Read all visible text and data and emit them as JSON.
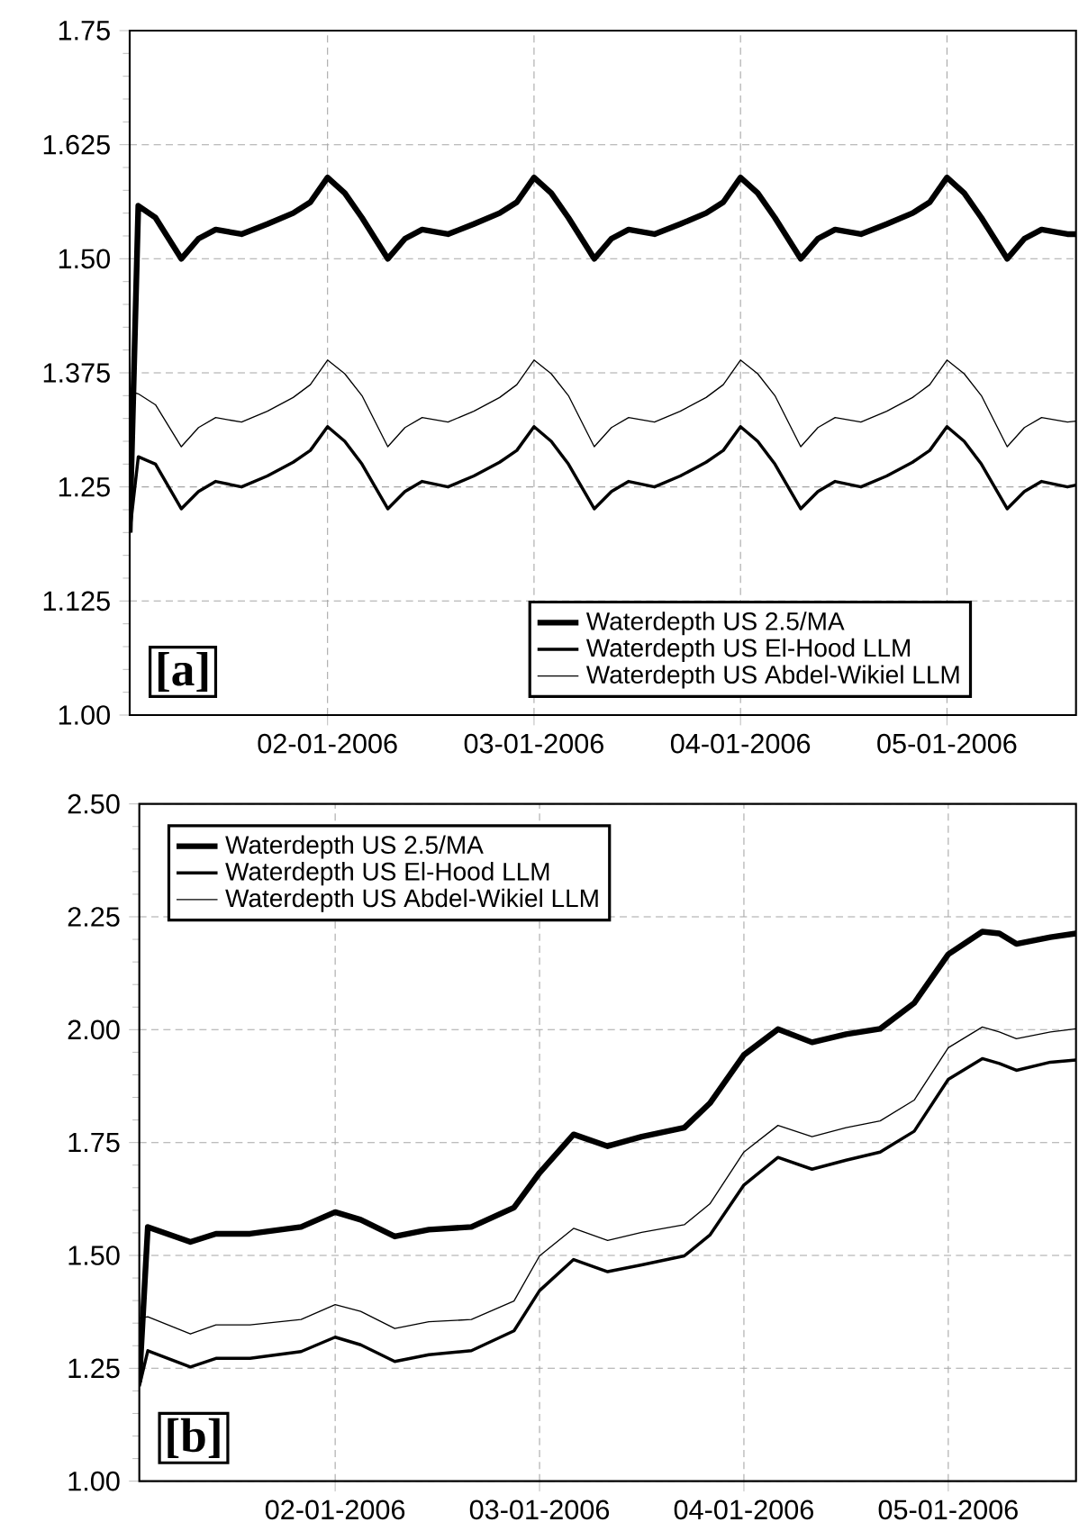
{
  "chart_data": [
    {
      "type": "line",
      "x": [
        "2006-01-01T01:00",
        "2006-01-01T02:00",
        "2006-01-01T04:00",
        "2006-01-01T07:00",
        "2006-01-01T09:00",
        "2006-01-01T11:00",
        "2006-01-01T14:00",
        "2006-01-01T17:00",
        "2006-01-01T20:00",
        "2006-01-01T22:00",
        "2006-01-02T00:00",
        "2006-01-02T02:00",
        "2006-01-02T04:00",
        "2006-01-02T07:00",
        "2006-01-02T09:00",
        "2006-01-02T11:00",
        "2006-01-02T14:00",
        "2006-01-02T17:00",
        "2006-01-02T20:00",
        "2006-01-02T22:00",
        "2006-01-03T00:00",
        "2006-01-03T02:00",
        "2006-01-03T04:00",
        "2006-01-03T07:00",
        "2006-01-03T09:00",
        "2006-01-03T11:00",
        "2006-01-03T14:00",
        "2006-01-03T17:00",
        "2006-01-03T20:00",
        "2006-01-03T22:00",
        "2006-01-04T00:00",
        "2006-01-04T02:00",
        "2006-01-04T04:00",
        "2006-01-04T07:00",
        "2006-01-04T09:00",
        "2006-01-04T11:00",
        "2006-01-04T14:00",
        "2006-01-04T17:00",
        "2006-01-04T20:00",
        "2006-01-04T22:00",
        "2006-01-05T00:00",
        "2006-01-05T02:00",
        "2006-01-05T04:00",
        "2006-01-05T07:00",
        "2006-01-05T09:00",
        "2006-01-05T11:00",
        "2006-01-05T14:00",
        "2006-01-05T15:00"
      ],
      "series": [
        {
          "name": "Waterdepth US 2.5/MA",
          "color": "#000000",
          "values": [
            1.2,
            1.558,
            1.545,
            1.5,
            1.522,
            1.532,
            1.527,
            1.538,
            1.55,
            1.562,
            1.589,
            1.572,
            1.545,
            1.5,
            1.522,
            1.532,
            1.527,
            1.538,
            1.55,
            1.562,
            1.589,
            1.572,
            1.545,
            1.5,
            1.522,
            1.532,
            1.527,
            1.538,
            1.55,
            1.562,
            1.589,
            1.572,
            1.545,
            1.5,
            1.522,
            1.532,
            1.527,
            1.538,
            1.55,
            1.562,
            1.589,
            1.572,
            1.545,
            1.5,
            1.522,
            1.532,
            1.527,
            1.527
          ]
        },
        {
          "name": "Waterdepth US El-Hood LLM",
          "color": "#000000",
          "values": [
            1.2,
            1.283,
            1.275,
            1.226,
            1.245,
            1.256,
            1.25,
            1.262,
            1.277,
            1.29,
            1.316,
            1.3,
            1.275,
            1.226,
            1.245,
            1.256,
            1.25,
            1.262,
            1.277,
            1.29,
            1.316,
            1.3,
            1.275,
            1.226,
            1.245,
            1.256,
            1.25,
            1.262,
            1.277,
            1.29,
            1.316,
            1.3,
            1.275,
            1.226,
            1.245,
            1.256,
            1.25,
            1.262,
            1.277,
            1.29,
            1.316,
            1.3,
            1.275,
            1.226,
            1.245,
            1.256,
            1.25,
            1.252
          ]
        },
        {
          "name": "Waterdepth US Abdel-Wikiel LLM",
          "color": "#000000",
          "values": [
            1.355,
            1.352,
            1.34,
            1.294,
            1.315,
            1.326,
            1.321,
            1.333,
            1.348,
            1.362,
            1.389,
            1.374,
            1.35,
            1.294,
            1.315,
            1.326,
            1.321,
            1.333,
            1.348,
            1.362,
            1.389,
            1.374,
            1.35,
            1.294,
            1.315,
            1.326,
            1.321,
            1.333,
            1.348,
            1.362,
            1.389,
            1.374,
            1.35,
            1.294,
            1.315,
            1.326,
            1.321,
            1.333,
            1.348,
            1.362,
            1.389,
            1.374,
            1.35,
            1.294,
            1.315,
            1.326,
            1.321,
            1.322
          ]
        }
      ],
      "xlim": [
        "2006-01-01T01:00",
        "2006-01-05T15:00"
      ],
      "xticks": [
        {
          "value": "2006-01-02",
          "label": "02-01-2006"
        },
        {
          "value": "2006-01-03",
          "label": "03-01-2006"
        },
        {
          "value": "2006-01-04",
          "label": "04-01-2006"
        },
        {
          "value": "2006-01-05",
          "label": "05-01-2006"
        }
      ],
      "ylim": [
        1.0,
        1.75
      ],
      "yticks": [
        {
          "value": 1.0,
          "label": "1.00"
        },
        1.125,
        1.25,
        1.375,
        {
          "value": 1.5,
          "label": "1.50"
        },
        1.625,
        1.75
      ],
      "grid": true,
      "legend": "bottom right",
      "annotations": [
        "[a]"
      ]
    },
    {
      "type": "line",
      "x": [
        "2006-01-01T01:00",
        "2006-01-01T02:00",
        "2006-01-01T07:00",
        "2006-01-01T10:00",
        "2006-01-01T14:00",
        "2006-01-01T20:00",
        "2006-01-02T00:00",
        "2006-01-02T03:00",
        "2006-01-02T07:00",
        "2006-01-02T11:00",
        "2006-01-02T16:00",
        "2006-01-02T21:00",
        "2006-01-03T00:00",
        "2006-01-03T04:00",
        "2006-01-03T08:00",
        "2006-01-03T12:00",
        "2006-01-03T17:00",
        "2006-01-03T20:00",
        "2006-01-04T00:00",
        "2006-01-04T04:00",
        "2006-01-04T08:00",
        "2006-01-04T12:00",
        "2006-01-04T16:00",
        "2006-01-04T20:00",
        "2006-01-05T00:00",
        "2006-01-05T04:00",
        "2006-01-05T06:00",
        "2006-01-05T08:00",
        "2006-01-05T12:00",
        "2006-01-05T15:00"
      ],
      "series": [
        {
          "name": "Waterdepth US 2.5/MA",
          "color": "#000000",
          "values": [
            1.22,
            1.563,
            1.53,
            1.548,
            1.548,
            1.563,
            1.596,
            1.579,
            1.542,
            1.557,
            1.563,
            1.606,
            1.683,
            1.768,
            1.742,
            1.763,
            1.783,
            1.837,
            1.944,
            2.001,
            1.972,
            1.99,
            2.002,
            2.059,
            2.167,
            2.217,
            2.213,
            2.19,
            2.205,
            2.213
          ]
        },
        {
          "name": "Waterdepth US El-Hood LLM",
          "color": "#000000",
          "values": [
            1.21,
            1.289,
            1.253,
            1.272,
            1.272,
            1.287,
            1.319,
            1.302,
            1.265,
            1.28,
            1.289,
            1.333,
            1.422,
            1.491,
            1.464,
            1.479,
            1.499,
            1.545,
            1.656,
            1.717,
            1.691,
            1.711,
            1.729,
            1.775,
            1.89,
            1.936,
            1.925,
            1.91,
            1.928,
            1.933
          ]
        },
        {
          "name": "Waterdepth US Abdel-Wikiel LLM",
          "color": "#000000",
          "values": [
            1.361,
            1.364,
            1.326,
            1.346,
            1.346,
            1.358,
            1.391,
            1.376,
            1.338,
            1.353,
            1.358,
            1.399,
            1.499,
            1.56,
            1.533,
            1.551,
            1.568,
            1.614,
            1.729,
            1.788,
            1.763,
            1.783,
            1.798,
            1.844,
            1.96,
            2.006,
            1.995,
            1.98,
            1.995,
            2.002
          ]
        }
      ],
      "xlim": [
        "2006-01-01T01:00",
        "2006-01-05T15:00"
      ],
      "xticks": [
        {
          "value": "2006-01-02",
          "label": "02-01-2006"
        },
        {
          "value": "2006-01-03",
          "label": "03-01-2006"
        },
        {
          "value": "2006-01-04",
          "label": "04-01-2006"
        },
        {
          "value": "2006-01-05",
          "label": "05-01-2006"
        }
      ],
      "ylim": [
        1.0,
        2.5
      ],
      "yticks": [
        {
          "value": 1.0,
          "label": "1.00"
        },
        1.25,
        {
          "value": 1.5,
          "label": "1.50"
        },
        1.75,
        {
          "value": 2.0,
          "label": "2.00"
        },
        2.25,
        {
          "value": 2.5,
          "label": "2.50"
        }
      ],
      "grid": true,
      "legend": "top left",
      "annotations": [
        "[b]"
      ]
    }
  ]
}
